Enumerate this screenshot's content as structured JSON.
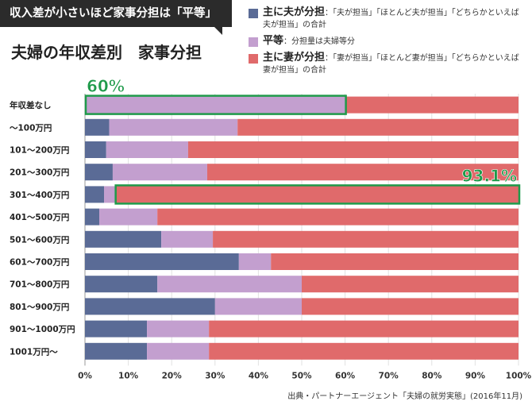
{
  "banner": "収入差が小さいほど家事分担は「平等」",
  "title": "夫婦の年収差別　家事分担",
  "legend": [
    {
      "name": "主に夫が分担",
      "desc": "：「夫が担当」「ほとんど夫が担当」「どちらかといえば夫が担当」の合計",
      "color": "#5a6b96"
    },
    {
      "name": "平等",
      "desc": "：分担量は夫婦等分",
      "color": "#c39fcf"
    },
    {
      "name": "主に妻が分担",
      "desc": "：「妻が担当」「ほとんど妻が担当」「どちらかといえば妻が担当」の合計",
      "color": "#e06a6b"
    }
  ],
  "source": "出典・パートナーエージェント「夫婦の就労実態」(2016年11月)",
  "chart_data": {
    "type": "bar",
    "orientation": "horizontal",
    "stacked": true,
    "categories": [
      "年収差なし",
      "〜100万円",
      "101〜200万円",
      "201〜300万円",
      "301〜400万円",
      "401〜500万円",
      "501〜600万円",
      "601〜700万円",
      "701〜800万円",
      "801〜900万円",
      "901〜1000万円",
      "1001万円〜"
    ],
    "series": [
      {
        "name": "主に夫が分担",
        "color": "#5a6b96",
        "values": [
          0,
          5.6,
          4.9,
          6.4,
          4.4,
          3.3,
          17.6,
          35.5,
          16.7,
          30,
          14.3,
          14.3
        ]
      },
      {
        "name": "平等",
        "color": "#c39fcf",
        "values": [
          60,
          29.6,
          18.9,
          21.8,
          2.5,
          13.4,
          11.9,
          7.4,
          33.3,
          20,
          14.3,
          14.3
        ]
      },
      {
        "name": "主に妻が分担",
        "color": "#e06a6b",
        "values": [
          40,
          64.8,
          76.2,
          71.8,
          93.1,
          83.3,
          70.5,
          57.1,
          50,
          50,
          71.4,
          71.4
        ]
      }
    ],
    "xlim": [
      0,
      100
    ],
    "xticks": [
      "0%",
      "10%",
      "20%",
      "30%",
      "40%",
      "50%",
      "60%",
      "70%",
      "80%",
      "90%",
      "100%"
    ],
    "grid": true,
    "annotations": [
      {
        "text": "60%",
        "category": "年収差なし",
        "series": "平等",
        "color": "#1f9a4a"
      },
      {
        "text": "93.1%",
        "category": "301〜400万円",
        "series": "主に妻が分担",
        "color": "#1f9a4a"
      }
    ]
  }
}
